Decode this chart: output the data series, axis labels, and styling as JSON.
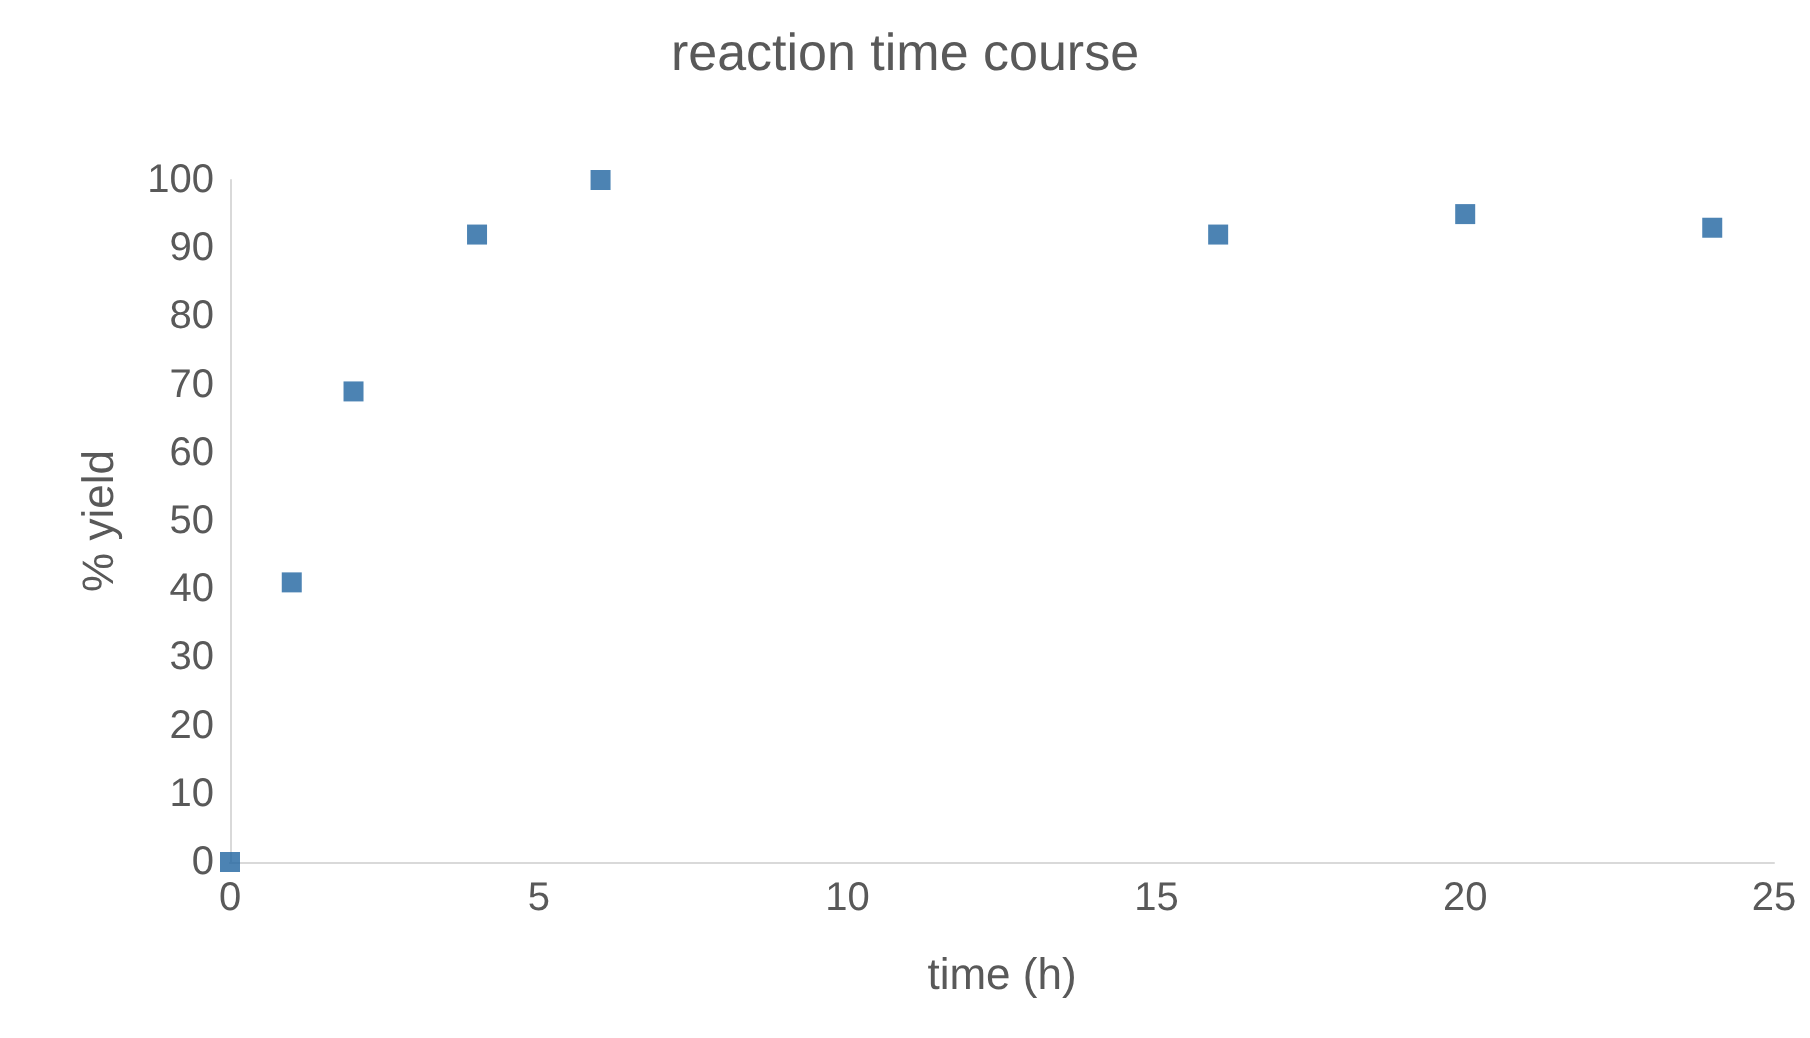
{
  "chart_data": {
    "type": "scatter",
    "title": "reaction time course",
    "xlabel": "time (h)",
    "ylabel": "% yield",
    "x": [
      0,
      1,
      2,
      4,
      6,
      16,
      20,
      24
    ],
    "series": [
      {
        "color": "#1f64a0",
        "values": [
          0,
          41,
          69,
          92,
          100,
          92,
          95,
          93
        ]
      }
    ],
    "xlim": [
      0,
      25
    ],
    "xticks": [
      0,
      5,
      10,
      15,
      20,
      25
    ],
    "ylim": [
      0,
      100
    ],
    "yticks": [
      0,
      10,
      20,
      30,
      40,
      50,
      60,
      70,
      80,
      90,
      100
    ],
    "grid": false,
    "marker": "square"
  }
}
